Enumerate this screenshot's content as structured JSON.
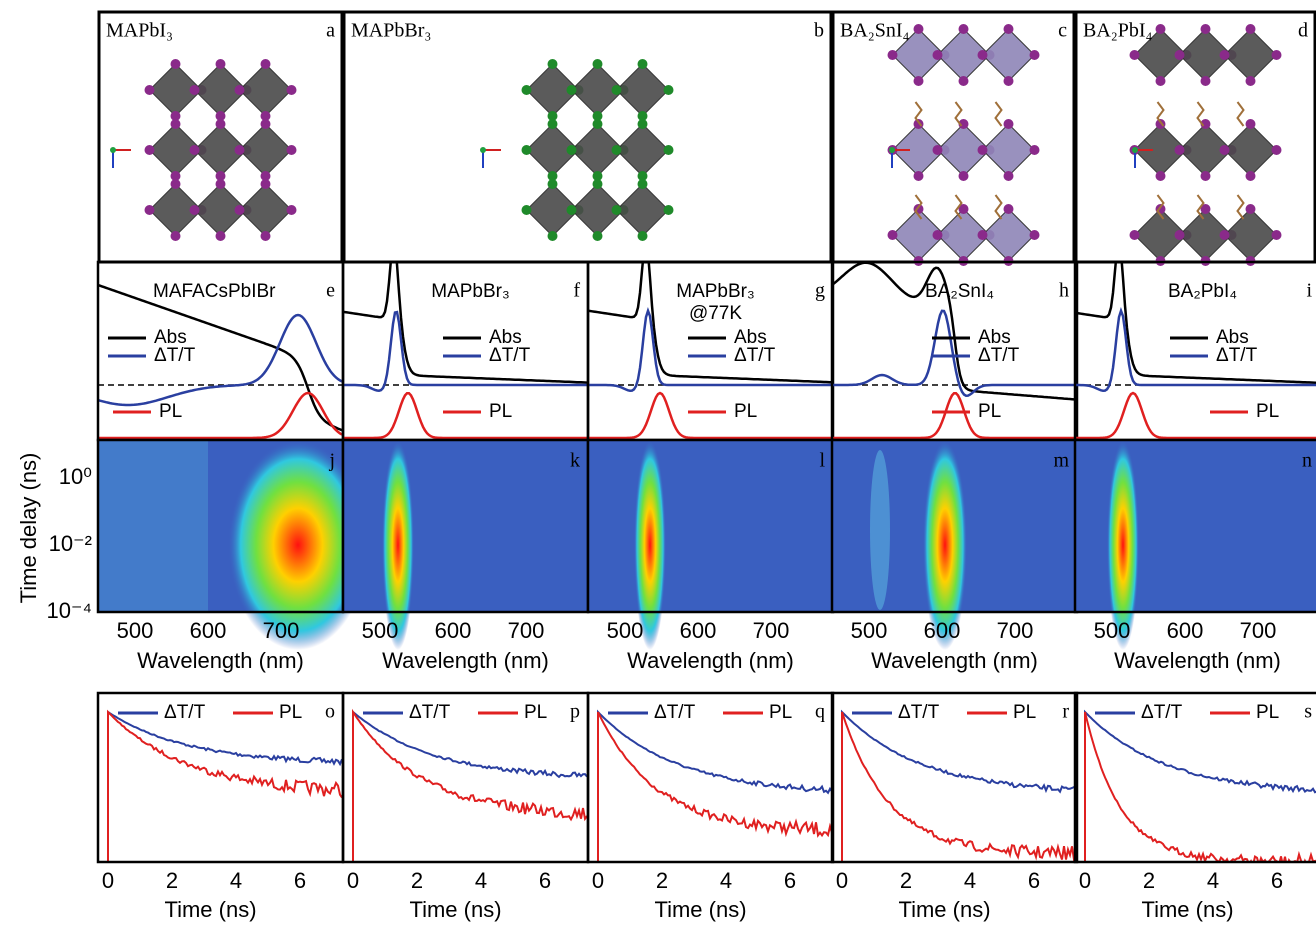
{
  "structures": [
    {
      "formula": "MAPbI₃",
      "letter": "a"
    },
    {
      "formula": "MAPbBr₃",
      "letter": "b"
    },
    {
      "formula": "BA₂SnI₄",
      "letter": "c"
    },
    {
      "formula": "BA₂PbI₄",
      "letter": "d"
    }
  ],
  "spectra": [
    {
      "title": [
        "MAFACsPbIBr"
      ],
      "letter": "e",
      "legend": [
        "Abs",
        "ΔT/T",
        "PL"
      ]
    },
    {
      "title": [
        "MAPbBr₃"
      ],
      "letter": "f",
      "legend": [
        "Abs",
        "ΔT/T",
        "PL"
      ]
    },
    {
      "title": [
        "MAPbBr₃",
        "@77K"
      ],
      "letter": "g",
      "legend": [
        "Abs",
        "ΔT/T",
        "PL"
      ]
    },
    {
      "title": [
        "BA₂SnI₄"
      ],
      "letter": "h",
      "legend": [
        "Abs",
        "ΔT/T",
        "PL"
      ]
    },
    {
      "title": [
        "BA₂PbI₄"
      ],
      "letter": "i",
      "legend": [
        "Abs",
        "ΔT/T",
        "PL"
      ]
    }
  ],
  "maps": {
    "y_label": "Time delay (ns)",
    "y_ticks": [
      "10⁰",
      "10⁻²",
      "10⁻⁴"
    ],
    "x_label": "Wavelength (nm)",
    "panels": [
      {
        "letter": "j",
        "x_ticks": [
          "500",
          "600",
          "700"
        ]
      },
      {
        "letter": "k",
        "x_ticks": [
          "500",
          "600",
          "700"
        ]
      },
      {
        "letter": "l",
        "x_ticks": [
          "500",
          "600",
          "700"
        ]
      },
      {
        "letter": "m",
        "x_ticks": [
          "500",
          "600",
          "700"
        ]
      },
      {
        "letter": "n",
        "x_ticks": [
          "500",
          "600",
          "700"
        ]
      }
    ]
  },
  "kinetics": {
    "x_label": "Time (ns)",
    "legend": [
      "ΔT/T",
      "PL"
    ],
    "panels": [
      {
        "letter": "o",
        "x_ticks": [
          "0",
          "2",
          "4",
          "6"
        ]
      },
      {
        "letter": "p",
        "x_ticks": [
          "0",
          "2",
          "4",
          "6"
        ]
      },
      {
        "letter": "q",
        "x_ticks": [
          "0",
          "2",
          "4",
          "6"
        ]
      },
      {
        "letter": "r",
        "x_ticks": [
          "0",
          "2",
          "4",
          "6"
        ]
      },
      {
        "letter": "s",
        "x_ticks": [
          "0",
          "2",
          "4",
          "6"
        ]
      }
    ]
  }
}
